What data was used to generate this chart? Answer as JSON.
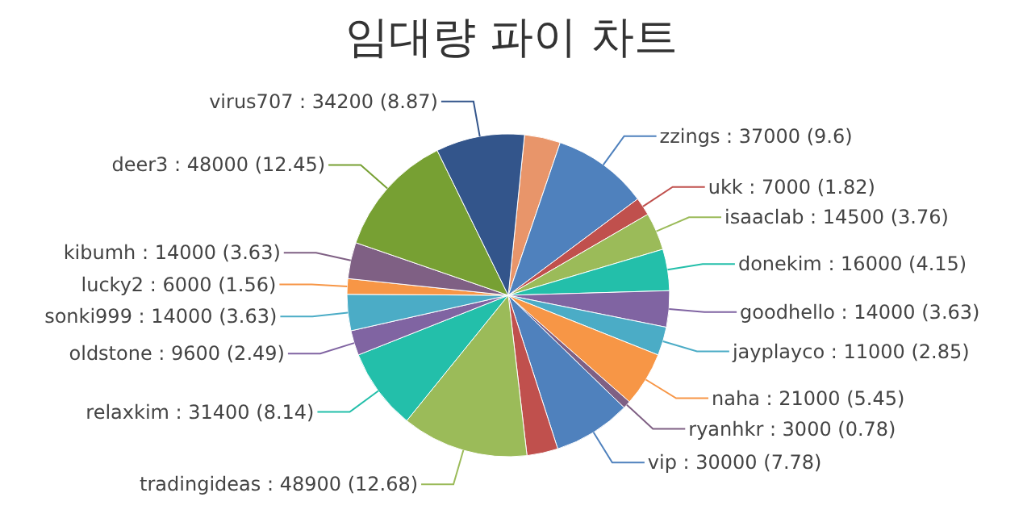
{
  "chart_data": {
    "type": "pie",
    "title": "임대량 파이 차트",
    "categories": [
      null,
      "zzings",
      "ukk",
      "isaaclab",
      "donekim",
      "goodhello",
      "jayplayco",
      "naha",
      "ryanhkr",
      "vip",
      null,
      "tradingideas",
      "relaxkim",
      "oldstone",
      "sonki999",
      "lucky2",
      "kibumh",
      "deer3",
      "virus707"
    ],
    "values": [
      13900,
      37000,
      7000,
      14500,
      16000,
      14000,
      11000,
      21000,
      3000,
      30000,
      12000,
      48900,
      31400,
      9600,
      14000,
      6000,
      14000,
      48000,
      34200
    ],
    "value_labels": [
      null,
      "37000 (9.6)",
      "7000 (1.82)",
      "14500 (3.76)",
      "16000 (4.15)",
      "14000 (3.63)",
      "11000 (2.85)",
      "21000 (5.45)",
      "3000 (0.78)",
      "30000 (7.78)",
      null,
      "48900 (12.68)",
      "31400 (8.14)",
      "9600 (2.49)",
      "14000 (3.63)",
      "6000 (1.56)",
      "14000 (3.63)",
      "48000 (12.45)",
      "34200 (8.87)"
    ],
    "colors": [
      "#e8956a",
      "#4f81bd",
      "#c0504d",
      "#9bbb59",
      "#23bfaa",
      "#8064a2",
      "#4bacc6",
      "#f79646",
      "#7f6084",
      "#4f81bd",
      "#c0504d",
      "#9bbb59",
      "#23bfaa",
      "#8064a2",
      "#4bacc6",
      "#f79646",
      "#7f6084",
      "#77a033",
      "#33558b"
    ]
  }
}
